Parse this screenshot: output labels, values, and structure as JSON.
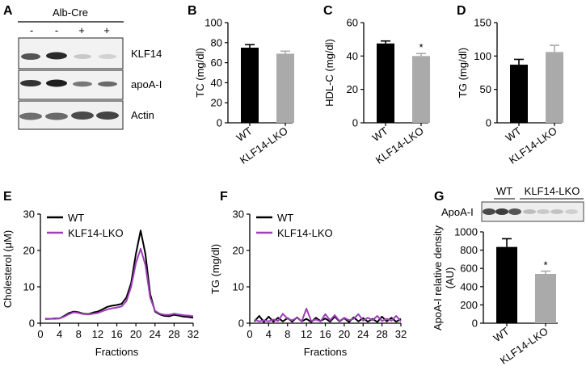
{
  "panel_labels": {
    "a": "A",
    "b": "B",
    "c": "C",
    "d": "D",
    "e": "E",
    "f": "F",
    "g": "G"
  },
  "blot_a": {
    "header": "Alb-Cre",
    "lanes": [
      "-",
      "-",
      "+",
      "+"
    ],
    "rows": [
      "KLF14",
      "apoA-I",
      "Actin"
    ]
  },
  "blot_g": {
    "row": "ApoA-I",
    "groups": [
      "WT",
      "KLF14-LKO"
    ]
  },
  "chart_data": [
    {
      "id": "B",
      "type": "bar",
      "categories": [
        "WT",
        "KLF14-LKO"
      ],
      "values": [
        75,
        69
      ],
      "errors": [
        3,
        2.5
      ],
      "ylabel": "TC (mg/dl)",
      "ylim": [
        0,
        100
      ],
      "yticks": [
        0,
        20,
        40,
        60,
        80,
        100
      ],
      "colors": [
        "#000000",
        "#aaaaaa"
      ],
      "annotations": [
        "",
        ""
      ]
    },
    {
      "id": "C",
      "type": "bar",
      "categories": [
        "WT",
        "KLF14-LKO"
      ],
      "values": [
        47.5,
        40
      ],
      "errors": [
        1.5,
        1.5
      ],
      "ylabel": "HDL-C (mg/dl)",
      "ylim": [
        0,
        60
      ],
      "yticks": [
        0,
        20,
        40,
        60
      ],
      "colors": [
        "#000000",
        "#aaaaaa"
      ],
      "annotations": [
        "",
        "*"
      ]
    },
    {
      "id": "D",
      "type": "bar",
      "categories": [
        "WT",
        "KLF14-LKO"
      ],
      "values": [
        87,
        106
      ],
      "errors": [
        8,
        10
      ],
      "ylabel": "TG (mg/dl)",
      "ylim": [
        0,
        150
      ],
      "yticks": [
        0,
        50,
        100,
        150
      ],
      "colors": [
        "#000000",
        "#aaaaaa"
      ],
      "annotations": [
        "",
        ""
      ]
    },
    {
      "id": "E",
      "type": "line",
      "xlabel": "Fractions",
      "ylabel": "Cholesterol (μM)",
      "xlim": [
        0,
        32
      ],
      "ylim": [
        0,
        30
      ],
      "xticks": [
        0,
        4,
        8,
        12,
        16,
        20,
        24,
        28,
        32
      ],
      "yticks": [
        0,
        10,
        20,
        30
      ],
      "legend": "top-left",
      "series": [
        {
          "name": "WT",
          "color": "#000000",
          "x": [
            1,
            2,
            3,
            4,
            5,
            6,
            7,
            8,
            9,
            10,
            11,
            12,
            13,
            14,
            15,
            16,
            17,
            18,
            19,
            20,
            21,
            22,
            23,
            24,
            25,
            26,
            27,
            28,
            29,
            30,
            31,
            32
          ],
          "y": [
            1.2,
            1.2,
            1.3,
            1.3,
            2,
            2.8,
            3.2,
            3,
            2.6,
            2.5,
            2.9,
            3.2,
            3.8,
            4.5,
            4.8,
            5,
            5.3,
            7,
            11,
            19,
            25.5,
            19,
            8,
            3.2,
            2.4,
            2,
            1.9,
            2.3,
            2.1,
            1.8,
            1.7,
            1.5
          ]
        },
        {
          "name": "KLF14-LKO",
          "color": "#9d3fba",
          "x": [
            1,
            2,
            3,
            4,
            5,
            6,
            7,
            8,
            9,
            10,
            11,
            12,
            13,
            14,
            15,
            16,
            17,
            18,
            19,
            20,
            21,
            22,
            23,
            24,
            25,
            26,
            27,
            28,
            29,
            30,
            31,
            32
          ],
          "y": [
            1.1,
            1.2,
            1.2,
            1.3,
            1.8,
            2.5,
            3,
            2.8,
            2.5,
            2.4,
            2.6,
            2.8,
            3.3,
            3.8,
            4.1,
            4.3,
            4.6,
            6,
            10,
            16.5,
            20.5,
            16,
            7,
            3.4,
            2.6,
            2.3,
            2.3,
            2.6,
            2.4,
            2.2,
            2.1,
            1.9
          ]
        }
      ]
    },
    {
      "id": "F",
      "type": "line",
      "xlabel": "Fractions",
      "ylabel": "TG (mg/dl)",
      "xlim": [
        0,
        32
      ],
      "ylim": [
        0,
        30
      ],
      "xticks": [
        0,
        4,
        8,
        12,
        16,
        20,
        24,
        28,
        32
      ],
      "yticks": [
        0,
        10,
        20,
        30
      ],
      "legend": "top-left",
      "series": [
        {
          "name": "WT",
          "color": "#000000",
          "x": [
            1,
            2,
            3,
            4,
            5,
            6,
            7,
            8,
            9,
            10,
            11,
            12,
            13,
            14,
            15,
            16,
            17,
            18,
            19,
            20,
            21,
            22,
            23,
            24,
            25,
            26,
            27,
            28,
            29,
            30,
            31,
            32
          ],
          "y": [
            0.5,
            2,
            0.3,
            1.8,
            0.4,
            1.5,
            0.5,
            1.4,
            0.4,
            1.6,
            0.5,
            1.2,
            0.3,
            1.5,
            0.6,
            1.3,
            0.4,
            1.8,
            0.5,
            1.4,
            0.3,
            1.6,
            0.5,
            1.4,
            0.4,
            1.2,
            0.3,
            1.8,
            0.5,
            1.5,
            0.4,
            1.2
          ]
        },
        {
          "name": "KLF14-LKO",
          "color": "#9d3fba",
          "x": [
            1,
            2,
            3,
            4,
            5,
            6,
            7,
            8,
            9,
            10,
            11,
            12,
            13,
            14,
            15,
            16,
            17,
            18,
            19,
            20,
            21,
            22,
            23,
            24,
            25,
            26,
            27,
            28,
            29,
            30,
            31,
            32
          ],
          "y": [
            1,
            0.5,
            0.8,
            0.5,
            1,
            0.6,
            2.6,
            1.2,
            0.8,
            1.5,
            0.5,
            4,
            0.6,
            1,
            0.5,
            2.5,
            0.8,
            2.2,
            0.6,
            1.5,
            0.8,
            1.2,
            2.5,
            0.7,
            1.5,
            0.8,
            2,
            0.6,
            1.2,
            0.7,
            2,
            0.5
          ]
        }
      ]
    },
    {
      "id": "G",
      "type": "bar",
      "categories": [
        "WT",
        "KLF14-LKO"
      ],
      "values": [
        835,
        540
      ],
      "errors": [
        90,
        30
      ],
      "ylabel": "ApoA-I relative density (AU)",
      "ylim": [
        0,
        1000
      ],
      "yticks": [
        0,
        200,
        400,
        600,
        800,
        1000
      ],
      "colors": [
        "#000000",
        "#aaaaaa"
      ],
      "annotations": [
        "",
        "*"
      ]
    }
  ]
}
